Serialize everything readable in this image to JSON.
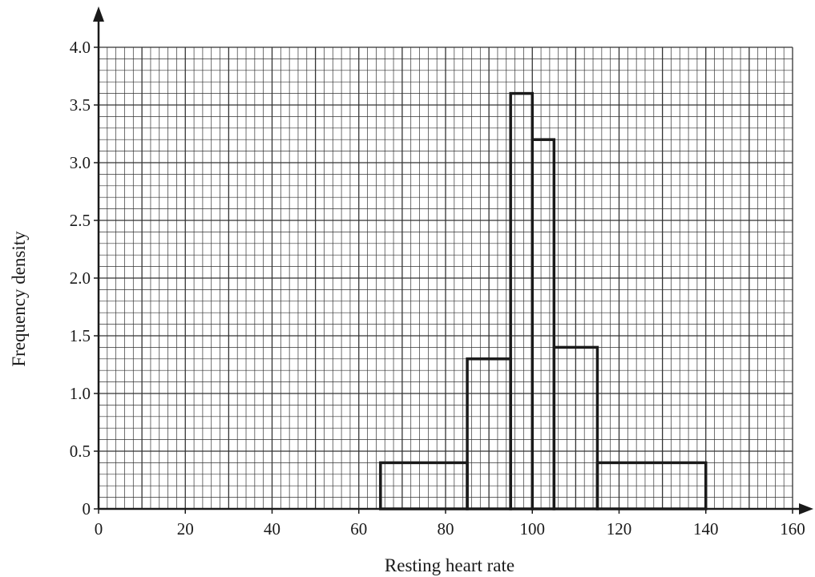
{
  "chart_data": {
    "type": "bar",
    "subtype": "histogram",
    "xlabel": "Resting heart rate",
    "ylabel": "Frequency density",
    "xlim": [
      0,
      160
    ],
    "ylim": [
      0,
      4.0
    ],
    "x_ticks": [
      0,
      20,
      40,
      60,
      80,
      100,
      120,
      140,
      160
    ],
    "x_tick_labels": [
      "0",
      "20",
      "40",
      "60",
      "80",
      "100",
      "120",
      "140",
      "160"
    ],
    "y_ticks": [
      0,
      0.5,
      1.0,
      1.5,
      2.0,
      2.5,
      3.0,
      3.5,
      4.0
    ],
    "y_tick_labels": [
      "0",
      "0.5",
      "1.0",
      "1.5",
      "2.0",
      "2.5",
      "3.0",
      "3.5",
      "4.0"
    ],
    "grid": true,
    "grid_minor_x": 2,
    "grid_minor_y": 0.1,
    "bins": [
      {
        "start": 65,
        "end": 85,
        "density": 0.4
      },
      {
        "start": 85,
        "end": 95,
        "density": 1.3
      },
      {
        "start": 95,
        "end": 100,
        "density": 3.6
      },
      {
        "start": 100,
        "end": 105,
        "density": 3.2
      },
      {
        "start": 105,
        "end": 115,
        "density": 1.4
      },
      {
        "start": 115,
        "end": 140,
        "density": 0.4
      }
    ],
    "colors": {
      "grid": "#333333",
      "bars": "#1a1a1a",
      "axis": "#1a1a1a"
    }
  }
}
